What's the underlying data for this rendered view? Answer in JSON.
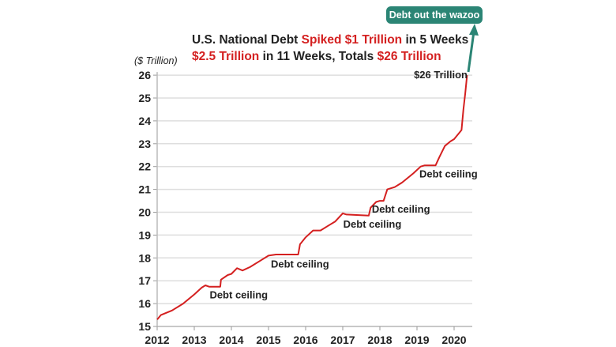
{
  "chart_data": {
    "type": "line",
    "title_parts": [
      {
        "text": "U.S. National Debt ",
        "highlight": false
      },
      {
        "text": "Spiked $1 Trillion",
        "highlight": true
      },
      {
        "text": " in 5 Weeks",
        "highlight": false
      },
      {
        "text": "$2.5 Trillion",
        "highlight": true
      },
      {
        "text": " in 11 Weeks, Totals ",
        "highlight": false
      },
      {
        "text": "$26 Trillion",
        "highlight": true
      }
    ],
    "ylabel": "($ Trillion)",
    "ylim": [
      15,
      26
    ],
    "xlim": [
      2012,
      2020.4
    ],
    "yticks": [
      15,
      16,
      17,
      18,
      19,
      20,
      21,
      22,
      23,
      24,
      25,
      26
    ],
    "xticks": [
      2012,
      2013,
      2014,
      2015,
      2016,
      2017,
      2018,
      2019,
      2020
    ],
    "grid": "horizontal",
    "line_color": "#d42020",
    "accent_color": "#2b8575",
    "highlight_color": "#d42020",
    "series": [
      {
        "x": [
          2012.0,
          2012.1,
          2012.4,
          2012.7,
          2013.0,
          2013.2,
          2013.3,
          2013.4,
          2013.7,
          2013.72,
          2013.9,
          2014.0,
          2014.15,
          2014.3,
          2014.5,
          2014.8,
          2015.0,
          2015.2,
          2015.8,
          2015.85,
          2016.0,
          2016.2,
          2016.4,
          2016.6,
          2016.8,
          2017.0,
          2017.1,
          2017.7,
          2017.75,
          2017.9,
          2018.0,
          2018.1,
          2018.2,
          2018.4,
          2018.6,
          2018.9,
          2019.1,
          2019.2,
          2019.5,
          2019.6,
          2019.75,
          2019.9,
          2020.0,
          2020.15,
          2020.2,
          2020.25,
          2020.3,
          2020.35
        ],
        "y": [
          15.3,
          15.5,
          15.7,
          16.0,
          16.4,
          16.7,
          16.8,
          16.74,
          16.74,
          17.05,
          17.25,
          17.3,
          17.55,
          17.45,
          17.6,
          17.9,
          18.1,
          18.15,
          18.15,
          18.6,
          18.9,
          19.2,
          19.2,
          19.4,
          19.6,
          19.95,
          19.9,
          19.85,
          20.2,
          20.45,
          20.5,
          20.5,
          21.0,
          21.1,
          21.3,
          21.7,
          22.0,
          22.05,
          22.05,
          22.4,
          22.9,
          23.1,
          23.2,
          23.5,
          23.6,
          24.5,
          25.2,
          26.0
        ]
      }
    ],
    "annotations": [
      {
        "text": "Debt ceiling",
        "x": 2013.35,
        "y": 16.4
      },
      {
        "text": "Debt ceiling",
        "x": 2015.0,
        "y": 17.75
      },
      {
        "text": "Debt ceiling",
        "x": 2016.95,
        "y": 19.5
      },
      {
        "text": "Debt ceiling",
        "x": 2017.72,
        "y": 20.15
      },
      {
        "text": "Debt ceiling",
        "x": 2019.0,
        "y": 21.7
      },
      {
        "text": "$26 Trillion",
        "x": 2019.0,
        "y": 26.0
      }
    ],
    "callout": "Debt out the wazoo"
  }
}
